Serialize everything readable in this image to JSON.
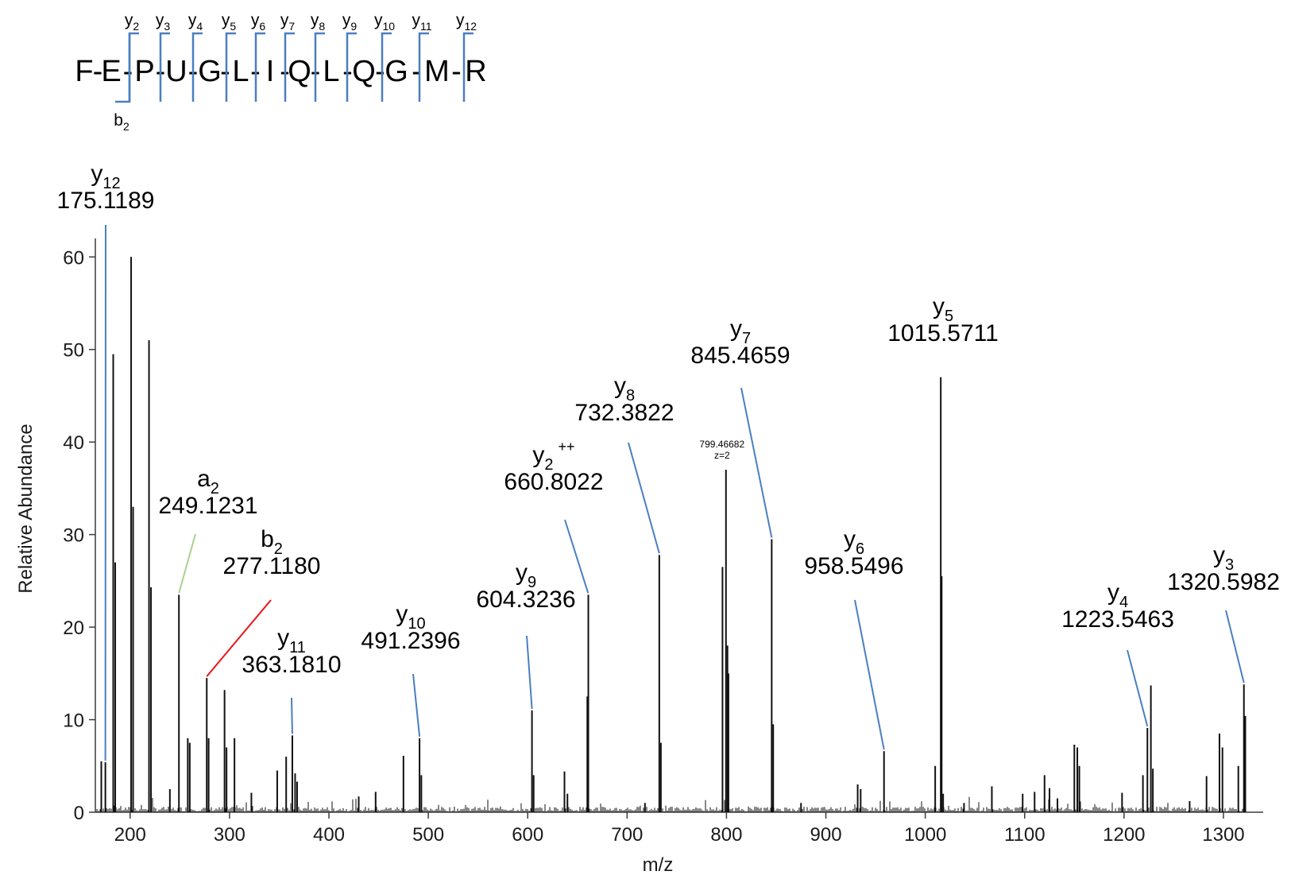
{
  "sequence": {
    "residues": [
      "F",
      "E",
      "P",
      "U",
      "G",
      "L",
      "I",
      "Q",
      "L",
      "Q",
      "G",
      "M",
      "R"
    ],
    "highlight_index": 3,
    "highlight_color": "#e8141a",
    "y_labels": [
      {
        "ion": "y",
        "sub": "2"
      },
      {
        "ion": "y",
        "sub": "3"
      },
      {
        "ion": "y",
        "sub": "4"
      },
      {
        "ion": "y",
        "sub": "5"
      },
      {
        "ion": "y",
        "sub": "6"
      },
      {
        "ion": "y",
        "sub": "7"
      },
      {
        "ion": "y",
        "sub": "8"
      },
      {
        "ion": "y",
        "sub": "9"
      },
      {
        "ion": "y",
        "sub": "10"
      },
      {
        "ion": "y",
        "sub": "11"
      },
      {
        "ion": "y",
        "sub": "12"
      }
    ],
    "b_label": {
      "ion": "b",
      "sub": "2"
    }
  },
  "chart_data": {
    "type": "bar",
    "xlabel": "m/z",
    "ylabel": "Relative Abundance",
    "xlim": [
      165,
      1340
    ],
    "ylim": [
      0,
      62
    ],
    "xticks": [
      200,
      300,
      400,
      500,
      600,
      700,
      800,
      900,
      1000,
      1100,
      1200,
      1300
    ],
    "yticks": [
      0,
      10,
      20,
      30,
      40,
      50,
      60
    ],
    "peaks": [
      [
        171,
        5.5
      ],
      [
        175.1,
        5.4
      ],
      [
        183,
        49.5
      ],
      [
        185,
        27
      ],
      [
        201,
        60
      ],
      [
        203,
        33
      ],
      [
        219,
        51
      ],
      [
        221,
        24.3
      ],
      [
        240,
        2.5
      ],
      [
        249.1,
        23.5
      ],
      [
        258,
        8
      ],
      [
        260,
        7.5
      ],
      [
        277.1,
        14.5
      ],
      [
        279,
        8
      ],
      [
        295,
        13.2
      ],
      [
        297,
        7
      ],
      [
        305,
        8
      ],
      [
        322,
        2.1
      ],
      [
        348,
        4.5
      ],
      [
        357,
        6
      ],
      [
        363.2,
        8.3
      ],
      [
        366,
        4.2
      ],
      [
        368,
        3.3
      ],
      [
        430,
        1.7
      ],
      [
        447,
        2.2
      ],
      [
        475,
        6.1
      ],
      [
        491.2,
        8
      ],
      [
        493,
        4
      ],
      [
        604.3,
        11
      ],
      [
        606,
        4
      ],
      [
        637,
        4.4
      ],
      [
        640,
        2
      ],
      [
        660,
        12.5
      ],
      [
        661,
        23.5
      ],
      [
        718,
        1
      ],
      [
        732.4,
        27.8
      ],
      [
        734,
        7.5
      ],
      [
        796,
        26.5
      ],
      [
        799.5,
        37
      ],
      [
        801,
        18
      ],
      [
        802,
        15
      ],
      [
        845.5,
        29.5
      ],
      [
        847,
        9.5
      ],
      [
        875,
        1
      ],
      [
        932,
        3
      ],
      [
        935,
        2.5
      ],
      [
        958.5,
        6.6
      ],
      [
        1010,
        5
      ],
      [
        1015.6,
        47
      ],
      [
        1016.5,
        25.5
      ],
      [
        1018,
        2
      ],
      [
        1039,
        1
      ],
      [
        1067,
        2.8
      ],
      [
        1098,
        2
      ],
      [
        1110,
        2.2
      ],
      [
        1120,
        4
      ],
      [
        1125,
        2.6
      ],
      [
        1133,
        1.5
      ],
      [
        1150,
        7.3
      ],
      [
        1153,
        7
      ],
      [
        1155,
        5
      ],
      [
        1198,
        2.1
      ],
      [
        1219,
        4
      ],
      [
        1223.5,
        9.1
      ],
      [
        1227,
        13.7
      ],
      [
        1229,
        4.7
      ],
      [
        1266,
        1.2
      ],
      [
        1283,
        3.9
      ],
      [
        1296,
        8.5
      ],
      [
        1299,
        7
      ],
      [
        1315,
        5
      ],
      [
        1320.6,
        13.8
      ],
      [
        1322,
        10.4
      ]
    ],
    "annotations": [
      {
        "ion": "y",
        "sub": "12",
        "sup": "",
        "mz": "175.1189",
        "peak_x": 175.1,
        "peak_y": 5.4,
        "line_color": "#4a7fc1"
      },
      {
        "ion": "a",
        "sub": "2",
        "sup": "",
        "mz": "249.1231",
        "peak_x": 249.1,
        "peak_y": 23.5,
        "line_color": "#a9d18e"
      },
      {
        "ion": "b",
        "sub": "2",
        "sup": "",
        "mz": "277.1180",
        "peak_x": 277.1,
        "peak_y": 14.5,
        "line_color": "#e8141a"
      },
      {
        "ion": "y",
        "sub": "11",
        "sup": "",
        "mz": "363.1810",
        "peak_x": 363.2,
        "peak_y": 8.3,
        "line_color": "#4a7fc1"
      },
      {
        "ion": "y",
        "sub": "10",
        "sup": "",
        "mz": "491.2396",
        "peak_x": 491.2,
        "peak_y": 8,
        "line_color": "#4a7fc1"
      },
      {
        "ion": "y",
        "sub": "9",
        "sup": "",
        "mz": "604.3236",
        "peak_x": 604.3,
        "peak_y": 11,
        "line_color": "#4a7fc1"
      },
      {
        "ion": "y",
        "sub": "2",
        "sup": "++",
        "mz": "660.8022",
        "peak_x": 660.8,
        "peak_y": 23.5,
        "line_color": "#4a7fc1"
      },
      {
        "ion": "y",
        "sub": "8",
        "sup": "",
        "mz": "732.3822",
        "peak_x": 732.4,
        "peak_y": 27.8,
        "line_color": "#4a7fc1"
      },
      {
        "ion": "y",
        "sub": "7",
        "sup": "",
        "mz": "845.4659",
        "peak_x": 845.5,
        "peak_y": 29.5,
        "line_color": "#4a7fc1"
      },
      {
        "ion": "y",
        "sub": "6",
        "sup": "",
        "mz": "958.5496",
        "peak_x": 958.5,
        "peak_y": 6.6,
        "line_color": "#4a7fc1"
      },
      {
        "ion": "y",
        "sub": "5",
        "sup": "",
        "mz": "1015.5711",
        "peak_x": 1015.6,
        "peak_y": 47,
        "line_color": ""
      },
      {
        "ion": "y",
        "sub": "4",
        "sup": "",
        "mz": "1223.5463",
        "peak_x": 1223.5,
        "peak_y": 9.1,
        "line_color": "#4a7fc1"
      },
      {
        "ion": "y",
        "sub": "3",
        "sup": "",
        "mz": "1320.5982",
        "peak_x": 1320.6,
        "peak_y": 13.8,
        "line_color": "#4a7fc1"
      }
    ],
    "precursor_note": {
      "mz": "799.46682",
      "charge": "z=2",
      "peak_x": 799.5,
      "peak_y": 37
    }
  }
}
